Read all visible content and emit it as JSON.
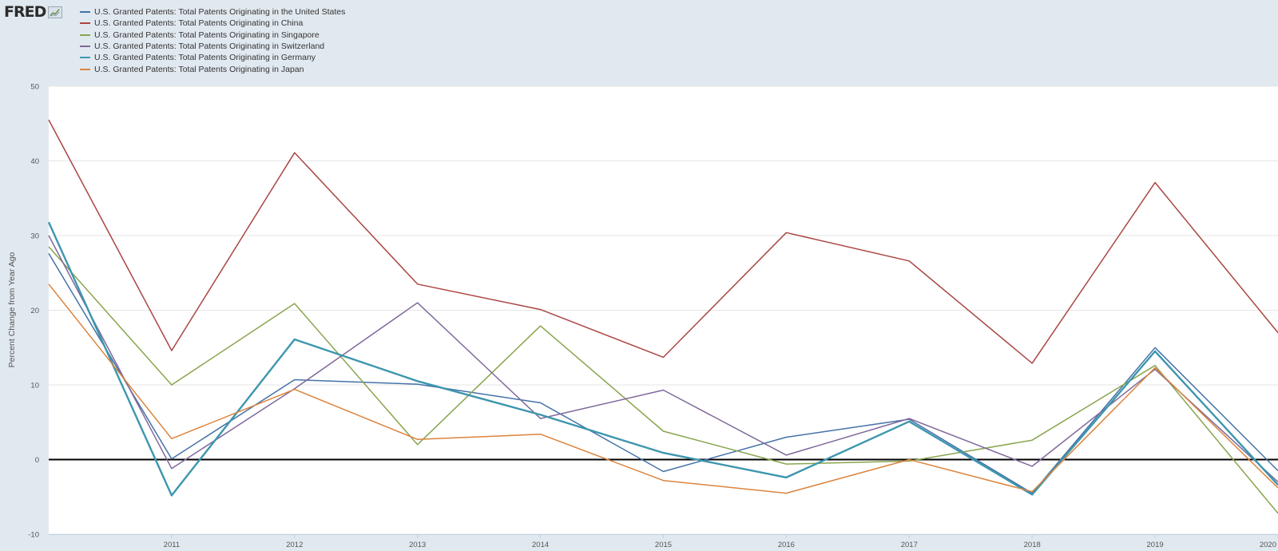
{
  "logo": {
    "text": "FRED"
  },
  "chart_data": {
    "type": "line",
    "ylabel": "Percent Change from Year Ago",
    "ylim": [
      -10,
      50
    ],
    "y_ticks": [
      -10,
      0,
      10,
      20,
      30,
      40,
      50
    ],
    "x": [
      2010,
      2011,
      2012,
      2013,
      2014,
      2015,
      2016,
      2017,
      2018,
      2019,
      2020
    ],
    "x_tick_labels": [
      "2011",
      "2012",
      "2013",
      "2014",
      "2015",
      "2016",
      "2017",
      "2018",
      "2019",
      "2020"
    ],
    "x_ticks": [
      2011,
      2012,
      2013,
      2014,
      2015,
      2016,
      2017,
      2018,
      2019,
      2020
    ],
    "zero_line": true,
    "grid": true,
    "legend_position": "top-left",
    "series": [
      {
        "name": "U.S. Granted Patents: Total Patents Originating in the United States",
        "color": "#4572a7",
        "values": [
          27.6,
          0.1,
          10.7,
          10.1,
          7.6,
          -1.6,
          3.0,
          5.4,
          -4.5,
          15.0,
          -1.5
        ]
      },
      {
        "name": "U.S. Granted Patents: Total Patents Originating in China",
        "color": "#aa4643",
        "values": [
          45.5,
          14.6,
          41.1,
          23.5,
          20.1,
          13.7,
          30.4,
          26.6,
          12.9,
          37.1,
          17.0
        ]
      },
      {
        "name": "U.S. Granted Patents: Total Patents Originating in Singapore",
        "color": "#89a54e",
        "values": [
          28.5,
          10.0,
          20.9,
          2.0,
          17.9,
          3.8,
          -0.6,
          -0.2,
          2.6,
          12.6,
          -7.2
        ]
      },
      {
        "name": "U.S. Granted Patents: Total Patents Originating in Switzerland",
        "color": "#80699b",
        "values": [
          30.0,
          -1.2,
          9.5,
          21.0,
          5.5,
          9.3,
          0.6,
          5.5,
          -0.9,
          12.1,
          -3.0
        ]
      },
      {
        "name": "U.S. Granted Patents: Total Patents Originating in Germany",
        "color": "#3d96ae",
        "values": [
          31.8,
          -4.8,
          16.1,
          10.5,
          6.0,
          0.9,
          -2.4,
          5.1,
          -4.7,
          14.5,
          -3.4
        ]
      },
      {
        "name": "U.S. Granted Patents: Total Patents Originating in Japan",
        "color": "#db843d",
        "values": [
          23.5,
          2.8,
          9.4,
          2.7,
          3.4,
          -2.8,
          -4.5,
          0.0,
          -4.3,
          12.3,
          -3.8
        ]
      }
    ]
  }
}
